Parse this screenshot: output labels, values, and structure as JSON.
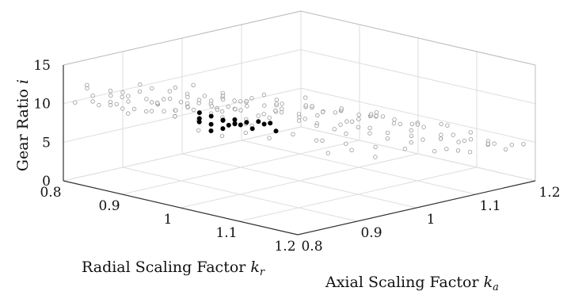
{
  "chart_data": {
    "type": "scatter",
    "title": "",
    "xlabel": "Radial Scaling Factor",
    "xlabel_symbol": "k",
    "xlabel_subscript": "r",
    "ylabel": "Axial Scaling Factor",
    "ylabel_symbol": "k",
    "ylabel_subscript": "a",
    "zlabel": "Gear Ratio",
    "zlabel_symbol": "i",
    "xlim": [
      0.8,
      1.2
    ],
    "ylim": [
      0.8,
      1.2
    ],
    "zlim": [
      0,
      15
    ],
    "x_ticks": [
      "0.8",
      "0.9",
      "1",
      "1.1",
      "1.2"
    ],
    "y_ticks": [
      "0.8",
      "0.9",
      "1",
      "1.1",
      "1.2"
    ],
    "z_ticks": [
      "0",
      "5",
      "10",
      "15"
    ],
    "grid": true,
    "colors": {
      "population": "#9a9a9a",
      "selected": "#000000"
    },
    "series": [
      {
        "role": "population",
        "style": "hollow-grey-circle",
        "points": [
          [
            0.82,
            0.8,
            10.5
          ],
          [
            0.83,
            0.82,
            11.2
          ],
          [
            0.84,
            0.81,
            10.8
          ],
          [
            0.85,
            0.83,
            12.0
          ],
          [
            0.86,
            0.82,
            10.9
          ],
          [
            0.84,
            0.84,
            9.8
          ],
          [
            0.87,
            0.84,
            11.5
          ],
          [
            0.85,
            0.86,
            10.1
          ],
          [
            0.88,
            0.83,
            9.6
          ],
          [
            0.86,
            0.87,
            12.3
          ],
          [
            0.83,
            0.86,
            9.4
          ],
          [
            0.89,
            0.86,
            10.7
          ],
          [
            0.87,
            0.88,
            11.8
          ],
          [
            0.9,
            0.85,
            9.9
          ],
          [
            0.88,
            0.89,
            10.4
          ],
          [
            0.91,
            0.88,
            12.6
          ],
          [
            0.86,
            0.9,
            9.2
          ],
          [
            0.92,
            0.87,
            10.0
          ],
          [
            0.9,
            0.91,
            11.1
          ],
          [
            0.89,
            0.92,
            9.5
          ],
          [
            0.93,
            0.9,
            10.6
          ],
          [
            0.94,
            0.89,
            8.9
          ],
          [
            0.92,
            0.93,
            9.8
          ],
          [
            0.95,
            0.92,
            11.3
          ],
          [
            0.91,
            0.95,
            8.7
          ],
          [
            0.96,
            0.91,
            9.1
          ],
          [
            0.94,
            0.95,
            10.2
          ],
          [
            0.97,
            0.94,
            8.5
          ],
          [
            0.93,
            0.97,
            9.6
          ],
          [
            0.98,
            0.96,
            9.0
          ],
          [
            0.96,
            0.98,
            10.8
          ],
          [
            0.99,
            0.93,
            8.2
          ],
          [
            0.97,
            1.0,
            8.8
          ],
          [
            1.0,
            0.97,
            9.4
          ],
          [
            0.95,
            1.01,
            7.9
          ],
          [
            1.01,
            0.99,
            8.6
          ],
          [
            0.98,
            1.03,
            9.9
          ],
          [
            1.02,
            1.01,
            7.6
          ],
          [
            1.0,
            1.04,
            8.3
          ],
          [
            1.03,
            0.98,
            8.9
          ],
          [
            0.85,
            0.92,
            7.8
          ],
          [
            0.87,
            0.94,
            8.4
          ],
          [
            0.89,
            0.96,
            7.5
          ],
          [
            0.91,
            0.98,
            8.1
          ],
          [
            0.93,
            1.0,
            7.2
          ],
          [
            0.84,
            0.88,
            8.6
          ],
          [
            0.86,
            0.93,
            7.9
          ],
          [
            0.88,
            0.97,
            8.8
          ],
          [
            0.9,
            1.0,
            7.4
          ],
          [
            0.92,
            1.02,
            8.0
          ],
          [
            0.81,
            0.85,
            9.1
          ],
          [
            0.82,
            0.88,
            8.3
          ],
          [
            0.83,
            0.91,
            7.6
          ],
          [
            0.84,
            0.94,
            8.9
          ],
          [
            0.85,
            0.97,
            7.1
          ],
          [
            0.95,
            0.84,
            10.3
          ],
          [
            0.97,
            0.86,
            9.7
          ],
          [
            0.99,
            0.88,
            10.9
          ],
          [
            1.01,
            0.9,
            9.3
          ],
          [
            1.03,
            0.92,
            10.1
          ],
          [
            0.94,
            0.86,
            11.6
          ],
          [
            0.96,
            0.88,
            12.4
          ],
          [
            0.98,
            0.9,
            11.0
          ],
          [
            1.0,
            0.92,
            12.1
          ],
          [
            1.02,
            0.94,
            10.5
          ],
          [
            1.04,
            0.96,
            9.2
          ],
          [
            1.05,
            0.95,
            10.4
          ],
          [
            1.06,
            0.97,
            8.7
          ],
          [
            1.04,
            1.0,
            9.6
          ],
          [
            1.07,
            0.99,
            8.1
          ],
          [
            1.05,
            1.02,
            7.8
          ],
          [
            1.08,
            1.01,
            8.9
          ],
          [
            1.06,
            1.04,
            7.3
          ],
          [
            1.09,
            1.03,
            7.9
          ],
          [
            1.07,
            1.06,
            8.5
          ],
          [
            1.02,
            1.06,
            7.0
          ],
          [
            1.04,
            1.08,
            7.7
          ],
          [
            1.01,
            1.09,
            6.6
          ],
          [
            1.03,
            1.1,
            7.2
          ],
          [
            1.05,
            1.11,
            6.4
          ],
          [
            1.1,
            1.05,
            7.1
          ],
          [
            1.11,
            1.04,
            6.7
          ],
          [
            1.12,
            1.07,
            7.4
          ],
          [
            1.13,
            1.06,
            6.2
          ],
          [
            1.1,
            1.09,
            6.0
          ],
          [
            1.08,
            1.12,
            6.8
          ],
          [
            1.06,
            1.14,
            5.9
          ],
          [
            1.09,
            1.15,
            6.3
          ],
          [
            1.11,
            1.13,
            5.6
          ],
          [
            1.13,
            1.11,
            5.8
          ],
          [
            1.15,
            1.09,
            6.5
          ],
          [
            1.14,
            1.13,
            5.2
          ],
          [
            1.16,
            1.12,
            5.9
          ],
          [
            1.17,
            1.15,
            5.0
          ],
          [
            1.12,
            1.17,
            5.4
          ],
          [
            1.15,
            1.17,
            4.8
          ],
          [
            1.18,
            1.14,
            5.5
          ],
          [
            1.19,
            1.16,
            4.6
          ],
          [
            1.2,
            1.18,
            5.1
          ],
          [
            1.17,
            1.19,
            4.3
          ],
          [
            0.97,
            1.06,
            6.9
          ],
          [
            0.99,
            1.08,
            7.5
          ],
          [
            0.96,
            1.1,
            6.4
          ],
          [
            0.98,
            1.12,
            6.1
          ],
          [
            1.0,
            1.13,
            6.6
          ],
          [
            0.94,
            1.07,
            7.3
          ],
          [
            0.92,
            1.09,
            6.8
          ],
          [
            0.95,
            1.12,
            6.2
          ],
          [
            0.93,
            1.14,
            5.7
          ],
          [
            0.97,
            1.15,
            5.3
          ],
          [
            0.9,
            1.06,
            7.0
          ],
          [
            0.88,
            1.08,
            6.5
          ],
          [
            0.91,
            1.11,
            6.0
          ],
          [
            0.89,
            1.13,
            5.5
          ],
          [
            0.86,
            1.1,
            6.3
          ],
          [
            0.83,
            0.98,
            6.9
          ],
          [
            0.85,
            1.01,
            6.4
          ],
          [
            0.82,
            1.03,
            6.0
          ],
          [
            0.84,
            1.05,
            5.6
          ],
          [
            0.87,
            1.04,
            6.7
          ],
          [
            1.1,
            0.98,
            8.2
          ],
          [
            1.12,
            0.96,
            7.6
          ],
          [
            1.14,
            0.99,
            7.0
          ],
          [
            1.11,
            1.01,
            7.9
          ],
          [
            1.16,
            1.02,
            6.6
          ],
          [
            1.18,
            1.05,
            6.1
          ],
          [
            1.17,
            1.08,
            5.7
          ],
          [
            1.19,
            1.1,
            5.3
          ],
          [
            1.2,
            1.07,
            6.2
          ],
          [
            1.15,
            1.06,
            6.9
          ],
          [
            1.02,
            1.15,
            5.1
          ],
          [
            1.04,
            1.17,
            4.7
          ],
          [
            1.01,
            1.18,
            4.4
          ],
          [
            1.06,
            1.19,
            4.9
          ],
          [
            1.08,
            1.18,
            4.2
          ],
          [
            0.99,
            1.17,
            4.8
          ],
          [
            0.96,
            1.18,
            4.5
          ],
          [
            0.93,
            1.19,
            4.1
          ],
          [
            1.1,
            1.19,
            3.8
          ],
          [
            1.13,
            1.2,
            3.6
          ],
          [
            0.88,
            0.82,
            11.9
          ],
          [
            0.9,
            0.83,
            12.8
          ],
          [
            0.92,
            0.84,
            11.4
          ],
          [
            0.94,
            0.82,
            12.2
          ],
          [
            0.96,
            0.83,
            10.6
          ],
          [
            0.8,
            0.84,
            11.3
          ],
          [
            0.81,
            0.87,
            10.0
          ],
          [
            0.82,
            0.82,
            12.4
          ],
          [
            0.8,
            0.9,
            9.7
          ],
          [
            0.81,
            0.93,
            8.5
          ],
          [
            0.87,
            0.91,
            10.9
          ],
          [
            0.89,
            0.93,
            11.7
          ],
          [
            0.91,
            0.92,
            10.3
          ],
          [
            0.93,
            0.94,
            11.2
          ],
          [
            0.95,
            0.96,
            10.0
          ],
          [
            0.86,
            0.95,
            9.3
          ],
          [
            0.88,
            0.99,
            8.6
          ],
          [
            0.9,
            0.97,
            9.8
          ],
          [
            0.92,
            0.99,
            9.1
          ],
          [
            0.94,
            1.03,
            8.4
          ],
          [
            0.98,
            0.85,
            8.8
          ],
          [
            1.0,
            0.87,
            8.1
          ],
          [
            1.02,
            0.89,
            8.5
          ],
          [
            1.04,
            0.91,
            7.8
          ],
          [
            1.06,
            0.93,
            8.3
          ],
          [
            1.08,
            0.95,
            7.5
          ],
          [
            1.1,
            0.94,
            8.0
          ],
          [
            1.12,
            0.93,
            6.9
          ],
          [
            1.14,
            0.95,
            7.3
          ],
          [
            1.16,
            0.97,
            6.4
          ]
        ]
      },
      {
        "role": "selected",
        "style": "filled-black-circle",
        "points": [
          [
            0.88,
            0.95,
            6.4
          ],
          [
            0.89,
            0.96,
            6.1
          ],
          [
            0.9,
            0.97,
            6.6
          ],
          [
            0.91,
            0.96,
            5.9
          ],
          [
            0.89,
            0.98,
            6.3
          ],
          [
            0.9,
            0.99,
            5.8
          ],
          [
            0.92,
            0.98,
            6.2
          ],
          [
            0.88,
            0.97,
            6.8
          ],
          [
            0.91,
            1.0,
            6.0
          ],
          [
            0.93,
            0.99,
            5.7
          ],
          [
            0.87,
            0.96,
            6.5
          ],
          [
            0.92,
            1.01,
            6.1
          ],
          [
            0.9,
            0.95,
            5.6
          ],
          [
            0.94,
            1.0,
            6.3
          ],
          [
            0.89,
            1.0,
            5.5
          ],
          [
            0.93,
            1.02,
            5.9
          ],
          [
            0.86,
            0.97,
            6.9
          ],
          [
            0.91,
            0.98,
            6.7
          ],
          [
            0.95,
            1.01,
            5.4
          ],
          [
            0.92,
            0.96,
            6.5
          ]
        ]
      }
    ]
  }
}
